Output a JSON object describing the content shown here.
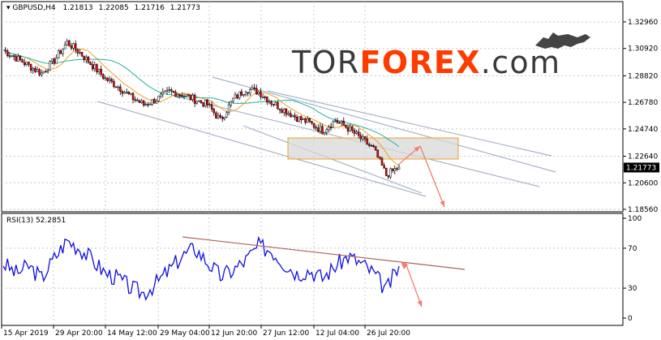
{
  "header": {
    "symbol": "GBPUSD,H4",
    "open": "1.21813",
    "high": "1.22085",
    "low": "1.21716",
    "close": "1.21773"
  },
  "logo": {
    "part1": "TOR",
    "part2": "FOREX",
    "part3": ".com",
    "color_dark": "#3a3a3a",
    "color_accent": "#ff3c00"
  },
  "price_axis": {
    "ticks": [
      "1.32960",
      "1.30920",
      "1.28820",
      "1.26780",
      "1.24740",
      "1.22640",
      "1.20600",
      "1.18560"
    ],
    "current_label": "1.21773"
  },
  "rsi_panel": {
    "title": "RSI(13) 52.2851",
    "ticks": [
      "100",
      "70",
      "30",
      "0"
    ],
    "levels": [
      70,
      30
    ]
  },
  "time_axis": {
    "labels": [
      "15 Apr 2019",
      "29 Apr 20:00",
      "14 May 12:00",
      "29 May 04:00",
      "12 Jun 20:00",
      "27 Jun 12:00",
      "12 Jul 04:00",
      "26 Jul 20:00"
    ]
  },
  "colors": {
    "price_line": "#000000",
    "bull_bar": "#ffffff",
    "bear_bar": "#ff0000",
    "ma_fast": "#f0a020",
    "ma_slow": "#20b0a0",
    "channel": "#a8b4c8",
    "rsi_line": "#1010e0",
    "rsi_trend": "#b06060",
    "arrow": "#f08070",
    "zone_fill": "#d8d8d8",
    "zone_border": "#f0a020"
  },
  "chart_data": [
    {
      "type": "line",
      "title": "",
      "x_range": [
        "15 Apr 2019",
        "1 Aug 2019"
      ],
      "ylim": [
        1.1856,
        1.3296
      ],
      "x": [
        "15 Apr",
        "18 Apr",
        "22 Apr",
        "25 Apr",
        "29 Apr",
        "2 May",
        "6 May",
        "9 May",
        "13 May",
        "16 May",
        "20 May",
        "23 May",
        "27 May",
        "30 May",
        "3 Jun",
        "6 Jun",
        "10 Jun",
        "13 Jun",
        "17 Jun",
        "20 Jun",
        "24 Jun",
        "27 Jun",
        "1 Jul",
        "4 Jul",
        "8 Jul",
        "11 Jul",
        "15 Jul",
        "18 Jul",
        "22 Jul",
        "25 Jul",
        "29 Jul",
        "1 Aug"
      ],
      "series": [
        {
          "values": [
            1.308,
            1.302,
            1.296,
            1.29,
            1.3,
            1.314,
            1.306,
            1.296,
            1.286,
            1.28,
            1.272,
            1.266,
            1.27,
            1.276,
            1.274,
            1.27,
            1.266,
            1.254,
            1.27,
            1.278,
            1.276,
            1.268,
            1.262,
            1.256,
            1.252,
            1.246,
            1.254,
            1.248,
            1.24,
            1.232,
            1.212,
            1.218
          ]
        }
      ]
    },
    {
      "type": "line",
      "title": "RSI(13) 52.2851",
      "ylim": [
        0,
        100
      ],
      "levels": [
        70,
        30
      ],
      "series": [
        {
          "values": [
            55,
            45,
            52,
            40,
            60,
            78,
            70,
            58,
            45,
            40,
            30,
            25,
            35,
            48,
            62,
            70,
            56,
            42,
            48,
            58,
            72,
            68,
            55,
            45,
            48,
            40,
            52,
            62,
            55,
            45,
            28,
            52
          ]
        }
      ]
    }
  ]
}
